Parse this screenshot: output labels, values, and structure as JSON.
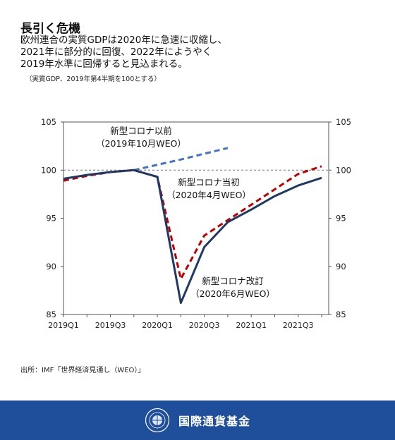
{
  "title": "長引く危機",
  "subtitle": [
    "欧州連合の実質GDPは2020年に急速に収縮し、",
    "2021年に部分的に回復、2022年にようやく",
    "2019年水準に回帰すると見込まれる。"
  ],
  "note": "（実質GDP、2019年第4半期を100とする）",
  "source": "出所：IMF「世界経済見通し（WEO）」",
  "footer": {
    "org": "国際通貨基金"
  },
  "chart_data": {
    "type": "line",
    "x": [
      "2019Q1",
      "2019Q2",
      "2019Q3",
      "2019Q4",
      "2020Q1",
      "2020Q2",
      "2020Q3",
      "2020Q4",
      "2021Q1",
      "2021Q2",
      "2021Q3",
      "2021Q4"
    ],
    "xticks": [
      "2019Q1",
      "2019Q3",
      "2020Q1",
      "2020Q3",
      "2021Q1",
      "2021Q3"
    ],
    "ylim": [
      85,
      105
    ],
    "yticks": [
      85,
      90,
      95,
      100,
      105
    ],
    "reference_line": 100,
    "grid": false,
    "series": [
      {
        "name": "新型コロナ以前（2019年10月WEO）",
        "label_lines": [
          "新型コロナ以前",
          "（2019年10月WEO）"
        ],
        "color": "#4472c4",
        "dash": true,
        "values": [
          null,
          null,
          null,
          100.0,
          100.55,
          101.1,
          101.7,
          102.3,
          null,
          null,
          null,
          null
        ]
      },
      {
        "name": "新型コロナ当初（2020年4月WEO）",
        "label_lines": [
          "新型コロナ当初",
          "（2020年4月WEO）"
        ],
        "color": "#c00000",
        "dash": true,
        "values": [
          98.9,
          99.4,
          99.8,
          100.0,
          99.3,
          88.7,
          93.2,
          94.8,
          96.4,
          98.0,
          99.6,
          100.4
        ]
      },
      {
        "name": "新型コロナ改訂（2020年6月WEO）",
        "label_lines": [
          "新型コロナ改訂",
          "（2020年6月WEO）"
        ],
        "color": "#1f3864",
        "dash": false,
        "values": [
          99.1,
          99.5,
          99.8,
          100.0,
          99.3,
          86.2,
          92.0,
          94.6,
          95.9,
          97.3,
          98.4,
          99.2
        ]
      }
    ]
  }
}
